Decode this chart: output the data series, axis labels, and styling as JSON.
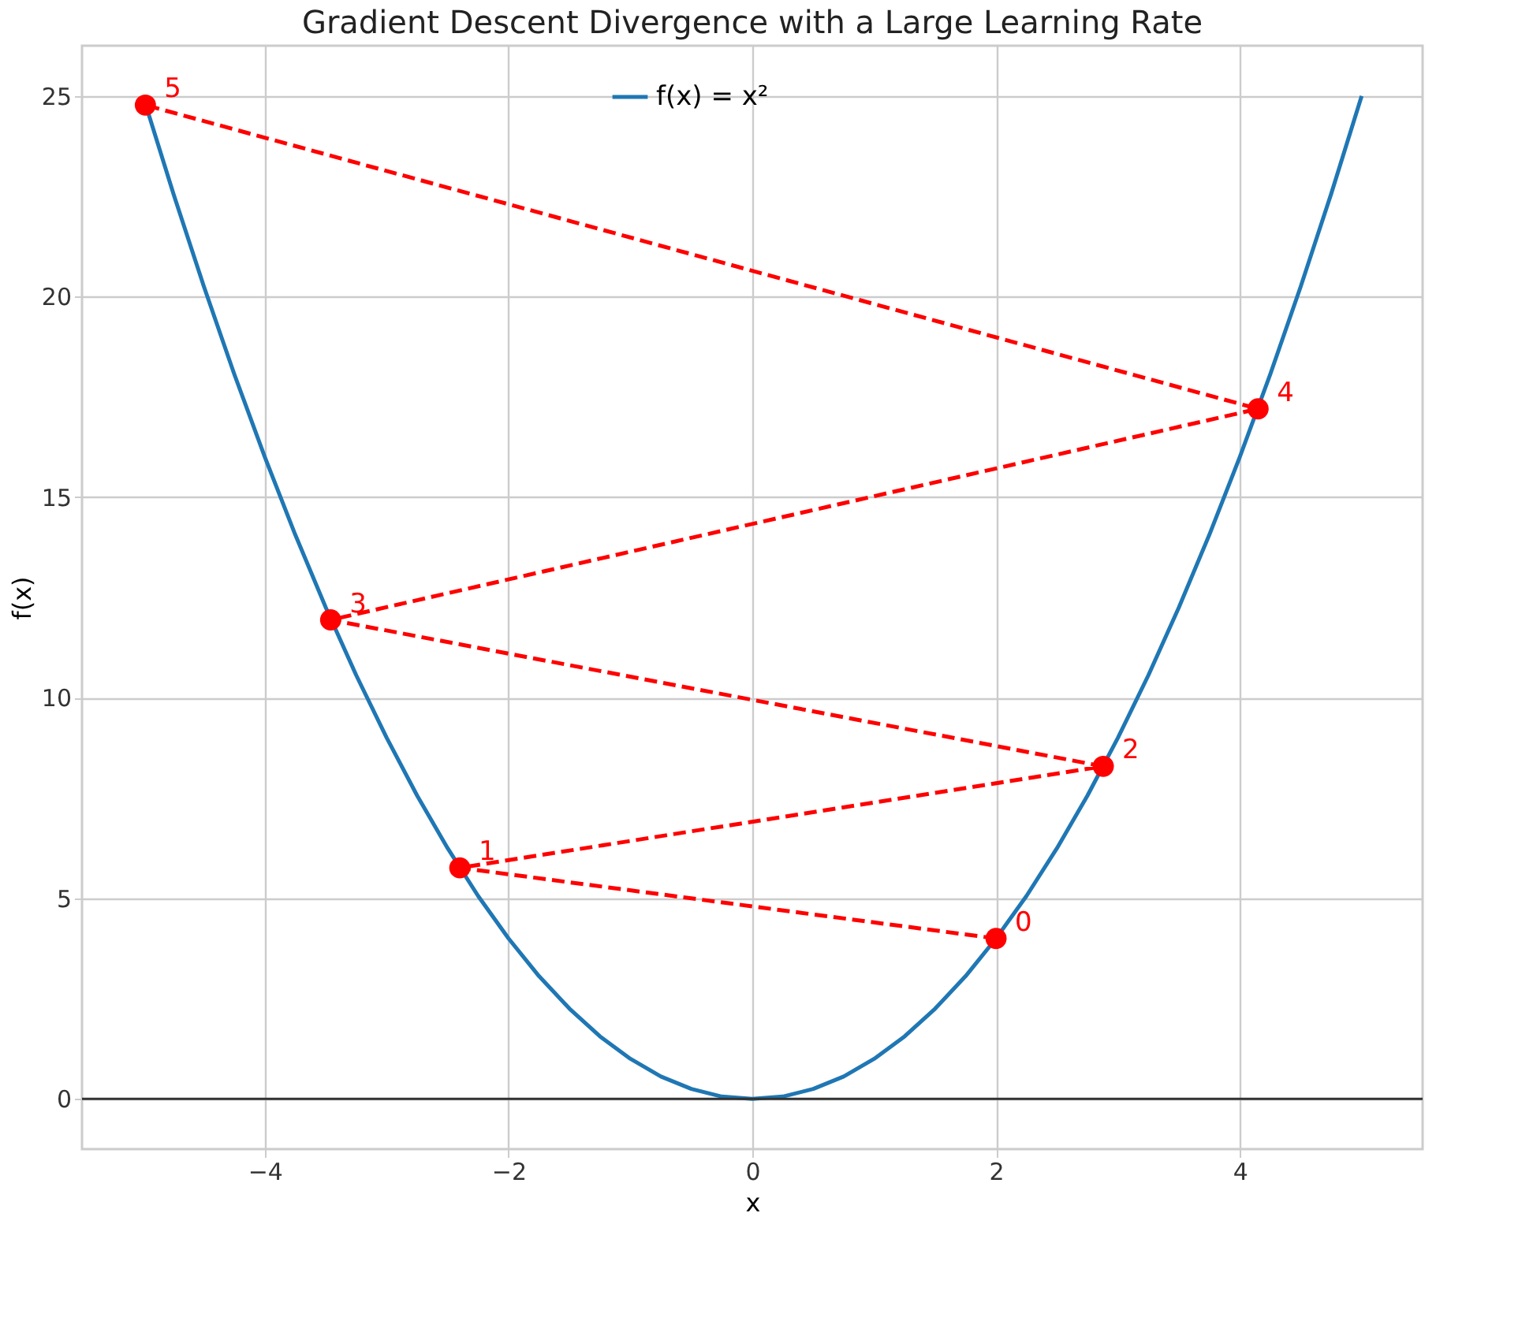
{
  "chart_data": {
    "type": "line",
    "title": "Gradient Descent Divergence with a Large Learning Rate",
    "xlabel": "x",
    "ylabel": "f(x)",
    "xlim": [
      -5.5,
      5.5
    ],
    "ylim": [
      -1.25,
      26.25
    ],
    "xticks": [
      -4,
      -2,
      0,
      2,
      4
    ],
    "yticks": [
      0,
      5,
      10,
      15,
      20,
      25
    ],
    "grid": true,
    "legend": "top",
    "series": [
      {
        "name": "f(x) = x²",
        "color": "#1f77b4",
        "marker": "none",
        "line_style": "solid",
        "x": [
          -5,
          -4.75,
          -4.5,
          -4.25,
          -4,
          -3.75,
          -3.5,
          -3.25,
          -3,
          -2.75,
          -2.5,
          -2.25,
          -2,
          -1.75,
          -1.5,
          -1.25,
          -1,
          -0.75,
          -0.5,
          -0.25,
          0,
          0.25,
          0.5,
          0.75,
          1,
          1.25,
          1.5,
          1.75,
          2,
          2.25,
          2.5,
          2.75,
          3,
          3.25,
          3.5,
          3.75,
          4,
          4.25,
          4.5,
          4.75,
          5
        ],
        "values": [
          25,
          22.56,
          20.25,
          18.06,
          16,
          14.06,
          12.25,
          10.56,
          9,
          7.56,
          6.25,
          5.06,
          4,
          3.06,
          2.25,
          1.56,
          1,
          0.56,
          0.25,
          0.06,
          0,
          0.06,
          0.25,
          0.56,
          1,
          1.56,
          2.25,
          3.06,
          4,
          5.06,
          6.25,
          7.56,
          9,
          10.56,
          12.25,
          14.06,
          16,
          18.06,
          20.25,
          22.56,
          25
        ]
      },
      {
        "color": "#ff0000",
        "marker": "circle",
        "line_style": "dashed",
        "x": [
          2,
          -2.4,
          2.88,
          -3.46,
          4.15,
          -4.98
        ],
        "values": [
          4,
          5.76,
          8.29,
          11.94,
          17.2,
          24.77
        ]
      }
    ],
    "ref_lines": [
      {
        "axis": "y",
        "value": 0,
        "color": "#333333",
        "line_style": "solid"
      }
    ],
    "annotations": [
      {
        "text": "0",
        "x": 2,
        "y": 4
      },
      {
        "text": "1",
        "x": -2.4,
        "y": 5.76
      },
      {
        "text": "2",
        "x": 2.88,
        "y": 8.29
      },
      {
        "text": "3",
        "x": -3.46,
        "y": 11.94
      },
      {
        "text": "4",
        "x": 4.15,
        "y": 17.2
      },
      {
        "text": "5",
        "x": -4.98,
        "y": 24.77
      }
    ]
  }
}
